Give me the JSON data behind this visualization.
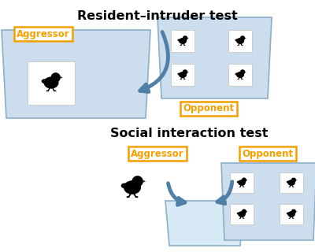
{
  "title1": "Resident–intruder test",
  "title2": "Social interaction test",
  "label_aggressor": "Aggressor",
  "label_opponent": "Opponent",
  "bg_color": "#ffffff",
  "box_fill": "#ccdeed",
  "box_edge": "#8ab0c8",
  "label_edge": "#f5a000",
  "label_text_color": "#f5a000",
  "arrow_color": "#5080a8",
  "title_fontsize": 11.5,
  "label_fontsize": 8.5
}
